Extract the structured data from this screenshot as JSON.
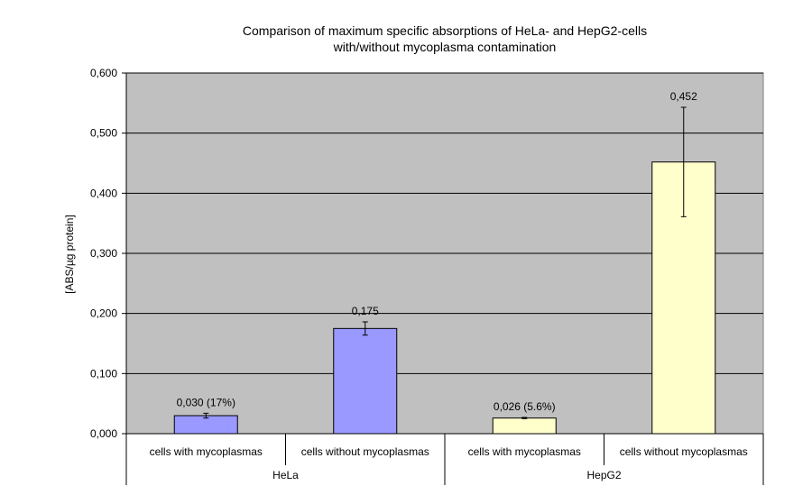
{
  "chart_data": {
    "type": "bar",
    "title_line1": "Comparison of maximum specific absorptions of HeLa- and HepG2-cells",
    "title_line2": "with/without mycoplasma contamination",
    "ylabel": "[ABS/µg protein]",
    "xlabel": "",
    "ylim": [
      0,
      0.6
    ],
    "yticks": [
      "0,000",
      "0,100",
      "0,200",
      "0,300",
      "0,400",
      "0,500",
      "0,600"
    ],
    "grid": true,
    "plot_background": "#c0c0c0",
    "groups": [
      "HeLa",
      "HepG2"
    ],
    "categories": [
      "cells with mycoplasmas",
      "cells without mycoplasmas",
      "cells with mycoplasmas",
      "cells without mycoplasmas"
    ],
    "values": [
      0.03,
      0.175,
      0.026,
      0.452
    ],
    "errors": [
      0.004,
      0.011,
      0.001,
      0.091
    ],
    "data_labels": [
      "0,030 (17%)",
      "0,175",
      "0,026 (5.6%)",
      "0,452"
    ],
    "colors": [
      "#9999ff",
      "#9999ff",
      "#ffffcc",
      "#ffffcc"
    ]
  }
}
